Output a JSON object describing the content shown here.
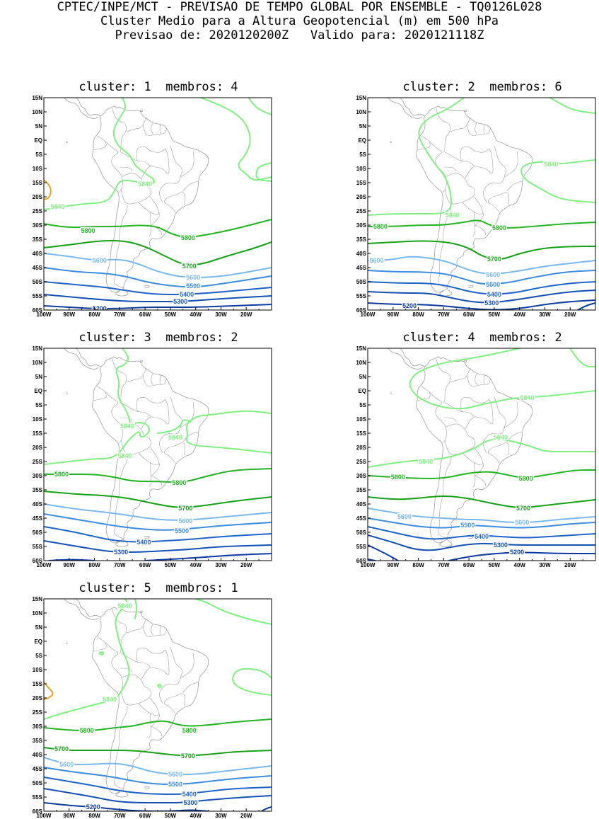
{
  "header": {
    "line1": "CPTEC/INPE/MCT - PREVISAO DE TEMPO GLOBAL POR ENSEMBLE - TQ0126L028",
    "line2": "Cluster Medio para a Altura Geopotencial (m) em 500 hPa",
    "line3": "Previsao de: 2020120200Z   Valido para: 2020121118Z"
  },
  "axes": {
    "lat_labels": [
      "15N",
      "10N",
      "5N",
      "EQ",
      "5S",
      "10S",
      "15S",
      "20S",
      "25S",
      "30S",
      "35S",
      "40S",
      "45S",
      "50S",
      "55S",
      "60S"
    ],
    "lon_labels": [
      "100W",
      "90W",
      "80W",
      "70W",
      "60W",
      "50W",
      "40W",
      "30W",
      "20W"
    ]
  },
  "colors": {
    "c5840": "#80f080",
    "c5800": "#22b422",
    "c5700": "#16a016",
    "c5600": "#78b8ee",
    "c5500": "#3c8ce0",
    "c5400": "#1e64c8",
    "c5300": "#1450b4",
    "c5200": "#0c3ca0",
    "c5900": "#f0a020",
    "land": "#a0a0a0"
  },
  "panels": [
    {
      "title": "cluster: 1  membros: 4",
      "labels": [
        {
          "text": "5840",
          "lon": -60,
          "lat": -15.5,
          "color": "c5840"
        },
        {
          "text": "5840",
          "lon": -94.5,
          "lat": -23.5,
          "color": "c5840"
        },
        {
          "text": "5800",
          "lon": -82.5,
          "lat": -32,
          "color": "c5800"
        },
        {
          "text": "5800",
          "lon": -43,
          "lat": -34.5,
          "color": "c5800"
        },
        {
          "text": "5700",
          "lon": -42.5,
          "lat": -44.5,
          "color": "c5700"
        },
        {
          "text": "5600",
          "lon": -78,
          "lat": -42.5,
          "color": "c5600"
        },
        {
          "text": "5600",
          "lon": -41,
          "lat": -48.5,
          "color": "c5600"
        },
        {
          "text": "5500",
          "lon": -41,
          "lat": -51.5,
          "color": "c5500"
        },
        {
          "text": "5400",
          "lon": -43.5,
          "lat": -54.5,
          "color": "c5400"
        },
        {
          "text": "5300",
          "lon": -46,
          "lat": -57,
          "color": "c5300"
        },
        {
          "text": "5200",
          "lon": -78,
          "lat": -59.5,
          "color": "c5200"
        }
      ]
    },
    {
      "title": "cluster: 2  membros: 6",
      "labels": [
        {
          "text": "5840",
          "lon": -27.5,
          "lat": -8.5,
          "color": "c5840"
        },
        {
          "text": "5840",
          "lon": -66.5,
          "lat": -26.5,
          "color": "c5840"
        },
        {
          "text": "5800",
          "lon": -95,
          "lat": -30.5,
          "color": "c5800"
        },
        {
          "text": "5800",
          "lon": -48,
          "lat": -31,
          "color": "c5800"
        },
        {
          "text": "5700",
          "lon": -50,
          "lat": -42,
          "color": "c5700"
        },
        {
          "text": "5600",
          "lon": -96.5,
          "lat": -42.5,
          "color": "c5600"
        },
        {
          "text": "5600",
          "lon": -50.5,
          "lat": -47.5,
          "color": "c5600"
        },
        {
          "text": "5500",
          "lon": -50.5,
          "lat": -51,
          "color": "c5500"
        },
        {
          "text": "5400",
          "lon": -50,
          "lat": -54.5,
          "color": "c5400"
        },
        {
          "text": "5300",
          "lon": -51,
          "lat": -57.5,
          "color": "c5300"
        },
        {
          "text": "5200",
          "lon": -83.5,
          "lat": -58.5,
          "color": "c5200"
        }
      ]
    },
    {
      "title": "cluster: 3  membros: 2",
      "labels": [
        {
          "text": "5840",
          "lon": -67,
          "lat": -12.5,
          "color": "c5840"
        },
        {
          "text": "5840",
          "lon": -48,
          "lat": -16.5,
          "color": "c5840"
        },
        {
          "text": "5840",
          "lon": -68,
          "lat": -23,
          "color": "c5840"
        },
        {
          "text": "5800",
          "lon": -93,
          "lat": -29.5,
          "color": "c5800"
        },
        {
          "text": "5800",
          "lon": -46.5,
          "lat": -32.5,
          "color": "c5800"
        },
        {
          "text": "5700",
          "lon": -44,
          "lat": -41.5,
          "color": "c5700"
        },
        {
          "text": "5600",
          "lon": -44,
          "lat": -46,
          "color": "c5600"
        },
        {
          "text": "5500",
          "lon": -45.5,
          "lat": -49.5,
          "color": "c5500"
        },
        {
          "text": "5400",
          "lon": -60.5,
          "lat": -53.5,
          "color": "c5400"
        },
        {
          "text": "5300",
          "lon": -69.5,
          "lat": -57,
          "color": "c5300"
        }
      ]
    },
    {
      "title": "cluster: 4  membros: 2",
      "labels": [
        {
          "text": "5840",
          "lon": -37,
          "lat": -2.5,
          "color": "c5840"
        },
        {
          "text": "5840",
          "lon": -47.5,
          "lat": -16.5,
          "color": "c5840"
        },
        {
          "text": "5840",
          "lon": -77,
          "lat": -25,
          "color": "c5840"
        },
        {
          "text": "5800",
          "lon": -88,
          "lat": -30.5,
          "color": "c5800"
        },
        {
          "text": "5800",
          "lon": -37.5,
          "lat": -31,
          "color": "c5800"
        },
        {
          "text": "5700",
          "lon": -38.5,
          "lat": -41.5,
          "color": "c5700"
        },
        {
          "text": "5600",
          "lon": -85.5,
          "lat": -44.5,
          "color": "c5600"
        },
        {
          "text": "5600",
          "lon": -39,
          "lat": -46.5,
          "color": "c5600"
        },
        {
          "text": "5500",
          "lon": -60.5,
          "lat": -47.5,
          "color": "c5500"
        },
        {
          "text": "5400",
          "lon": -55,
          "lat": -51.5,
          "color": "c5400"
        },
        {
          "text": "5300",
          "lon": -47.5,
          "lat": -54.5,
          "color": "c5300"
        },
        {
          "text": "5200",
          "lon": -41,
          "lat": -57,
          "color": "c5200"
        }
      ]
    },
    {
      "title": "cluster: 5  membros: 1",
      "labels": [
        {
          "text": "5840",
          "lon": -68,
          "lat": 12.5,
          "color": "c5840"
        },
        {
          "text": "5840",
          "lon": -74,
          "lat": -20.5,
          "color": "c5840"
        },
        {
          "text": "5800",
          "lon": -83,
          "lat": -31.5,
          "color": "c5800"
        },
        {
          "text": "5800",
          "lon": -42.5,
          "lat": -31.5,
          "color": "c5800"
        },
        {
          "text": "5700",
          "lon": -93,
          "lat": -38,
          "color": "c5700"
        },
        {
          "text": "5700",
          "lon": -43,
          "lat": -40.5,
          "color": "c5700"
        },
        {
          "text": "5600",
          "lon": -91,
          "lat": -43.5,
          "color": "c5600"
        },
        {
          "text": "5600",
          "lon": -48,
          "lat": -47,
          "color": "c5600"
        },
        {
          "text": "5500",
          "lon": -48,
          "lat": -50.5,
          "color": "c5500"
        },
        {
          "text": "5400",
          "lon": -42.5,
          "lat": -54,
          "color": "c5400"
        },
        {
          "text": "5300",
          "lon": -42,
          "lat": -57,
          "color": "c5300"
        },
        {
          "text": "5200",
          "lon": -80.5,
          "lat": -58.5,
          "color": "c5200"
        }
      ]
    }
  ]
}
